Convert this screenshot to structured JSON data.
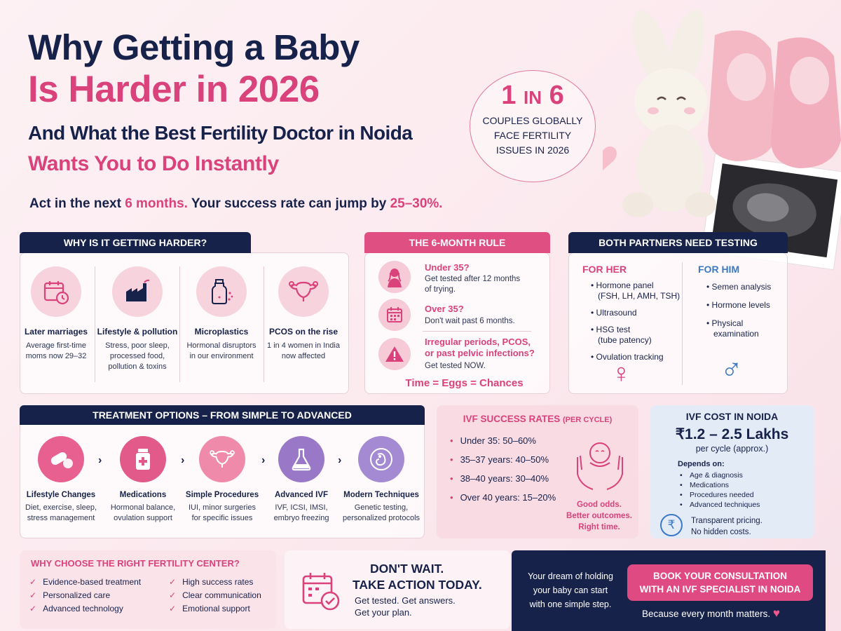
{
  "header": {
    "line1": "Why Getting a Baby",
    "line2": "Is Harder in 2026",
    "line3": "And What the Best Fertility Doctor in Noida",
    "line4": "Wants You to Do Instantly",
    "act_pre": "Act in the next ",
    "act_months": "6 months.",
    "act_mid": " Your success rate can jump by ",
    "act_pct": "25–30%."
  },
  "stat": {
    "big1": "1",
    "big_in": "IN",
    "big2": "6",
    "line1": "COUPLES GLOBALLY",
    "line2": "FACE FERTILITY",
    "line3": "ISSUES IN 2026"
  },
  "why": {
    "title": "WHY IS IT GETTING HARDER?",
    "items": [
      {
        "title": "Later marriages",
        "sub1": "Average first-time",
        "sub2": "moms now 29–32",
        "sub3": "",
        "icon": "calendar-clock-icon"
      },
      {
        "title": "Lifestyle & pollution",
        "sub1": "Stress, poor sleep,",
        "sub2": "processed food,",
        "sub3": "pollution & toxins",
        "icon": "factory-icon"
      },
      {
        "title": "Microplastics",
        "sub1": "Hormonal disruptors",
        "sub2": "in our environment",
        "sub3": "",
        "icon": "bottle-icon"
      },
      {
        "title": "PCOS on the rise",
        "sub1": "1 in 4 women in India",
        "sub2": "now affected",
        "sub3": "",
        "icon": "uterus-icon"
      }
    ]
  },
  "rule": {
    "title": "THE 6-MONTH RULE",
    "r1_h": "Under 35?",
    "r1_s1": "Get tested after 12 months",
    "r1_s2": "of trying.",
    "r2_h": "Over 35?",
    "r2_s1": "Don't wait past 6 months.",
    "r3_h1": "Irregular periods, PCOS,",
    "r3_h2": "or past pelvic infections?",
    "r3_s1": "Get tested NOW.",
    "footer": "Time = Eggs = Chances"
  },
  "partners": {
    "title": "BOTH PARTNERS NEED TESTING",
    "her_title": "FOR HER",
    "her": [
      "Hormone panel",
      "(FSH, LH, AMH, TSH)",
      "Ultrasound",
      "HSG test",
      "(tube patency)",
      "Ovulation tracking"
    ],
    "him_title": "FOR HIM",
    "him": [
      "Semen analysis",
      "Hormone levels",
      "Physical",
      "examination"
    ],
    "her_symbol": "♀",
    "him_symbol": "♂"
  },
  "treatment": {
    "title": "TREATMENT OPTIONS – FROM SIMPLE TO ADVANCED",
    "items": [
      {
        "title": "Lifestyle Changes",
        "sub1": "Diet, exercise, sleep,",
        "sub2": "stress management",
        "icon": "pill-icon",
        "color": "#e8608f"
      },
      {
        "title": "Medications",
        "sub1": "Hormonal balance,",
        "sub2": "ovulation support",
        "icon": "medicine-bottle-icon",
        "color": "#e25a89"
      },
      {
        "title": "Simple Procedures",
        "sub1": "IUI, minor surgeries",
        "sub2": "for specific issues",
        "icon": "uterus-icon",
        "color": "#f08aab"
      },
      {
        "title": "Advanced IVF",
        "sub1": "IVF, ICSI, IMSI,",
        "sub2": "embryo freezing",
        "icon": "flask-icon",
        "color": "#9a78c8"
      },
      {
        "title": "Modern Techniques",
        "sub1": "Genetic testing,",
        "sub2": "personalized protocols",
        "icon": "embryo-icon",
        "color": "#a48ad2"
      }
    ],
    "chevron": "›"
  },
  "rates": {
    "title": "IVF SUCCESS RATES",
    "title_sub": "(PER CYCLE)",
    "items": [
      "Under 35: 50–60%",
      "35–37 years: 40–50%",
      "38–40 years: 30–40%",
      "Over 40 years: 15–20%"
    ],
    "note1": "Good odds.",
    "note2": "Better outcomes.",
    "note3": "Right time."
  },
  "cost": {
    "title": "IVF COST IN NOIDA",
    "amount": "₹1.2 – 2.5 Lakhs",
    "per": "per cycle (approx.)",
    "depends": "Depends on:",
    "items": [
      "Age & diagnosis",
      "Medications",
      "Procedures needed",
      "Advanced techniques"
    ],
    "rupee": "₹",
    "note1": "Transparent pricing.",
    "note2": "No hidden costs."
  },
  "choose": {
    "title": "WHY CHOOSE THE RIGHT FERTILITY CENTER?",
    "left": [
      "Evidence-based treatment",
      "Personalized care",
      "Advanced technology"
    ],
    "right": [
      "High success rates",
      "Clear communication",
      "Emotional support"
    ],
    "check": "✓"
  },
  "cta": {
    "h1": "DON'T WAIT.",
    "h2": "TAKE ACTION TODAY.",
    "s1": "Get tested. Get answers.",
    "s2": "Get your plan.",
    "dream1": "Your dream of holding",
    "dream2": "your baby can start",
    "dream3": "with one simple step.",
    "btn1": "BOOK YOUR CONSULTATION",
    "btn2": "WITH AN IVF SPECIALIST IN NOIDA",
    "because": "Because every month matters.",
    "heart": "♥"
  },
  "colors": {
    "navy": "#17224a",
    "pink": "#d9427a",
    "light_pink": "#f7d3dd"
  }
}
